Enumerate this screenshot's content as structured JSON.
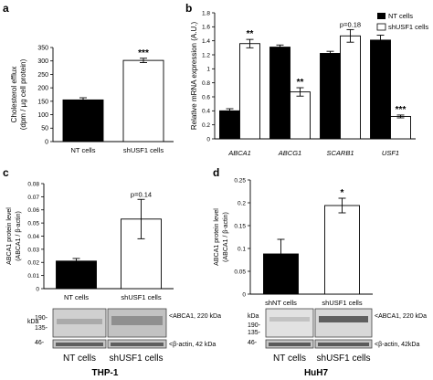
{
  "panels": [
    {
      "letter": "a",
      "chart_data": {
        "type": "bar",
        "categories": [
          "NT cells",
          "shUSF1 cells"
        ],
        "values": [
          155,
          302
        ],
        "errors": [
          8,
          8
        ],
        "fills": [
          "#000000",
          "#ffffff"
        ],
        "significance": [
          "",
          "***"
        ],
        "ylabel_lines": [
          "Cholesterol efflux",
          "(dpm / µg cell protein)"
        ],
        "ylim": [
          0,
          350
        ],
        "yticks": [
          "0",
          "50",
          "100",
          "150",
          "200",
          "250",
          "300",
          "350"
        ]
      }
    },
    {
      "letter": "b",
      "chart_data": {
        "type": "bar",
        "categories": [
          "ABCA1",
          "ABCG1",
          "SCARB1",
          "USF1"
        ],
        "series": [
          {
            "name": "NT cells",
            "color": "#000000",
            "values": [
              0.4,
              1.31,
              1.22,
              1.41
            ],
            "errors": [
              0.03,
              0.03,
              0.03,
              0.07
            ],
            "significance": [
              "",
              "",
              "",
              ""
            ]
          },
          {
            "name": "shUSF1 cells",
            "color": "#ffffff",
            "values": [
              1.36,
              0.67,
              1.47,
              0.32
            ],
            "errors": [
              0.06,
              0.06,
              0.09,
              0.02
            ],
            "significance": [
              "**",
              "**",
              "p=0.18",
              "***"
            ]
          }
        ],
        "ylabel": "Relative mRNA expression (A.U.)",
        "ylim": [
          0,
          1.8
        ],
        "yticks": [
          "0",
          "0.2",
          "0.4",
          "0.6",
          "0.8",
          "1",
          "1.2",
          "1.4",
          "1.6",
          "1.8"
        ],
        "legend": "top-right"
      }
    },
    {
      "letter": "c",
      "chart_data": {
        "type": "bar",
        "categories": [
          "NT cells",
          "shUSF1 cells"
        ],
        "values": [
          0.021,
          0.053
        ],
        "errors": [
          0.002,
          0.015
        ],
        "fills": [
          "#000000",
          "#ffffff"
        ],
        "significance": [
          "",
          "p=0.14"
        ],
        "ylabel_lines": [
          "ABCA1 protein level",
          "(ABCA1 / β-actin)"
        ],
        "ylim": [
          0,
          0.08
        ],
        "yticks": [
          "0",
          "0.01",
          "0.02",
          "0.03",
          "0.04",
          "0.05",
          "0.06",
          "0.07",
          "0.08"
        ]
      },
      "blot": {
        "kda_label": "kDa",
        "markers": [
          "190-",
          "135-",
          "46-"
        ],
        "band_labels": [
          "<ABCA1, 220 kDa",
          "<β-actin, 42 kDa"
        ],
        "lane_labels": [
          "NT cells",
          "shUSF1 cells"
        ],
        "cell_line": "THP-1"
      }
    },
    {
      "letter": "d",
      "chart_data": {
        "type": "bar",
        "categories": [
          "shNT cells",
          "shUSF1 cells"
        ],
        "values": [
          0.088,
          0.194
        ],
        "errors": [
          0.032,
          0.016
        ],
        "fills": [
          "#000000",
          "#ffffff"
        ],
        "significance": [
          "",
          "*"
        ],
        "ylabel_lines": [
          "ABCA1 protein level",
          "(ABCA1 / β-actin)"
        ],
        "ylim": [
          0,
          0.25
        ],
        "yticks": [
          "0",
          "0.05",
          "0.1",
          "0.15",
          "0.2",
          "0.25"
        ]
      },
      "blot": {
        "kda_label": "kDa",
        "markers": [
          "190-",
          "135-",
          "46-"
        ],
        "band_labels": [
          "<ABCA1, 220 kDa",
          "<β-actin, 42kDa"
        ],
        "lane_labels": [
          "NT cells",
          "shUSF1 cells"
        ],
        "cell_line": "HuH7"
      }
    }
  ]
}
